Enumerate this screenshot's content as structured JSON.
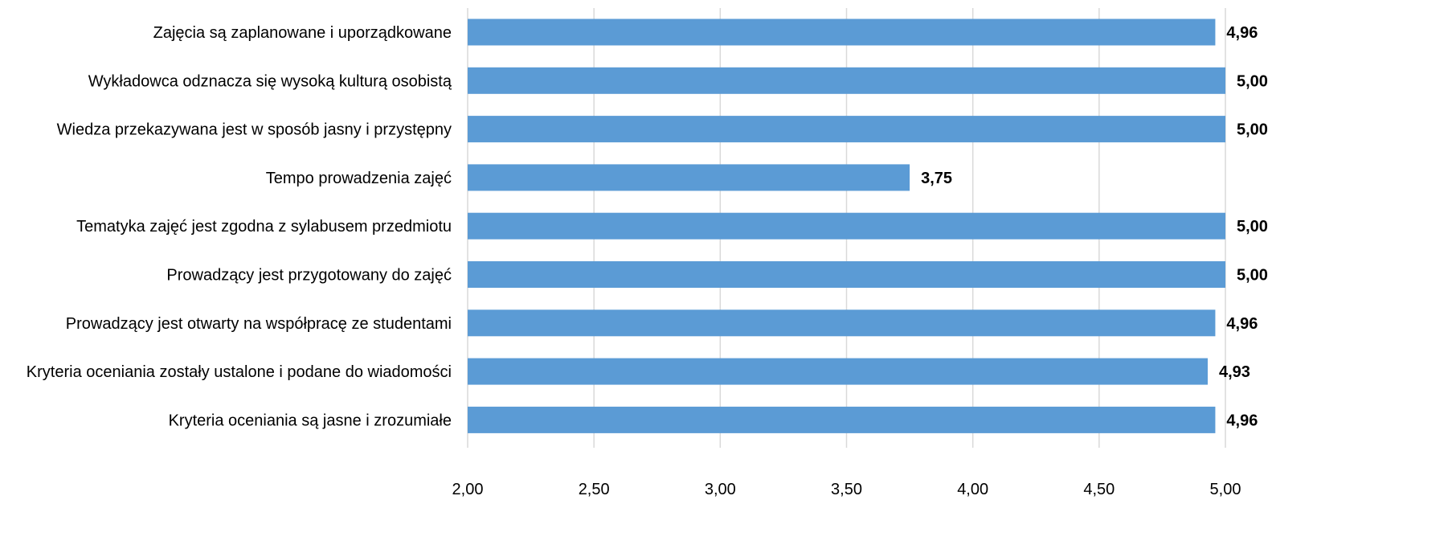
{
  "chart_data": {
    "type": "bar",
    "orientation": "horizontal",
    "categories": [
      "Zajęcia są zaplanowane i uporządkowane",
      "Wykładowca odznacza się wysoką kulturą osobistą",
      "Wiedza przekazywana jest w sposób jasny i przystępny",
      "Tempo prowadzenia zajęć",
      "Tematyka zajęć jest zgodna z sylabusem przedmiotu",
      "Prowadzący jest przygotowany do zajęć",
      "Prowadzący jest otwarty na współpracę ze studentami",
      "Kryteria oceniania zostały ustalone i podane do wiadomości",
      "Kryteria oceniania są jasne i zrozumiałe"
    ],
    "values": [
      4.96,
      5.0,
      5.0,
      3.75,
      5.0,
      5.0,
      4.96,
      4.93,
      4.96
    ],
    "value_labels": [
      "4,96",
      "5,00",
      "5,00",
      "3,75",
      "5,00",
      "5,00",
      "4,96",
      "4,93",
      "4,96"
    ],
    "xlim": [
      2.0,
      5.0
    ],
    "ticks": [
      2.0,
      2.5,
      3.0,
      3.5,
      4.0,
      4.5,
      5.0
    ],
    "tick_labels": [
      "2,00",
      "2,50",
      "3,00",
      "3,50",
      "4,00",
      "4,50",
      "5,00"
    ],
    "bar_color": "#5b9bd5",
    "grid": true,
    "legend": "none",
    "title": "",
    "xlabel": "",
    "ylabel": ""
  }
}
